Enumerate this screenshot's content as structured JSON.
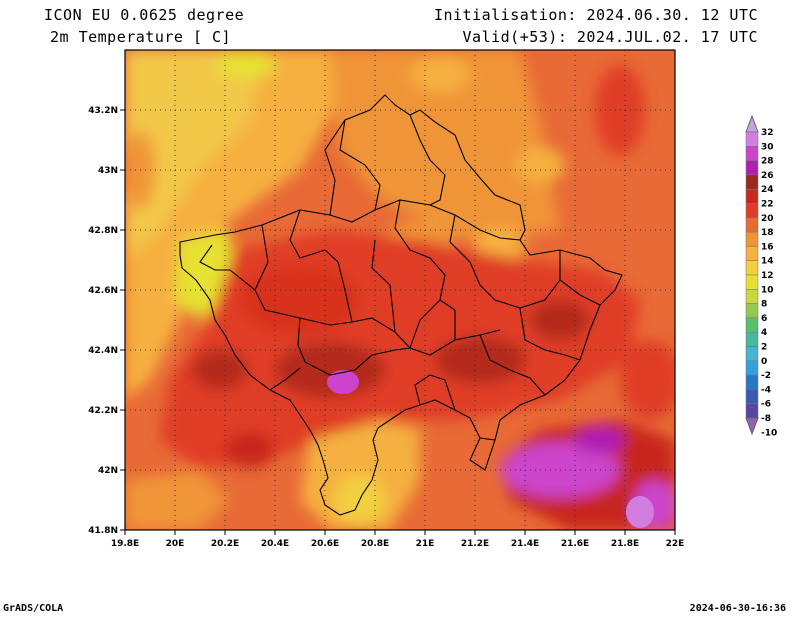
{
  "header": {
    "model": "ICON EU 0.0625 degree",
    "variable": "2m Temperature [ C]",
    "init": "Initialisation: 2024.06.30. 12 UTC",
    "valid": "Valid(+53): 2024.JUL.02. 17 UTC"
  },
  "footer": {
    "credit": "GrADS/COLA",
    "timestamp": "2024-06-30-16:36"
  },
  "map": {
    "lon_ticks": [
      "19.8E",
      "20E",
      "20.2E",
      "20.4E",
      "20.6E",
      "20.8E",
      "21E",
      "21.2E",
      "21.4E",
      "21.6E",
      "21.8E",
      "22E"
    ],
    "lat_ticks": [
      "41.8N",
      "42N",
      "42.2N",
      "42.4N",
      "42.6N",
      "42.8N",
      "43N",
      "43.2N"
    ]
  },
  "colorbar": {
    "levels": [
      "32",
      "30",
      "28",
      "26",
      "24",
      "22",
      "20",
      "18",
      "16",
      "14",
      "12",
      "10",
      "8",
      "6",
      "4",
      "2",
      "0",
      "-2",
      "-4",
      "-6",
      "-8",
      "-10"
    ],
    "colors": [
      "#c8a0dc",
      "#d27ee0",
      "#cc44cc",
      "#b01eb4",
      "#9a2a1e",
      "#c8281e",
      "#e03c26",
      "#e86a36",
      "#f09438",
      "#f5b040",
      "#f2d040",
      "#e6e132",
      "#c8d73c",
      "#96c850",
      "#5abe6e",
      "#46b9a0",
      "#46b4d2",
      "#32a0dc",
      "#2878c8",
      "#3c5ab4",
      "#5a46a0",
      "#8c64b4"
    ]
  }
}
